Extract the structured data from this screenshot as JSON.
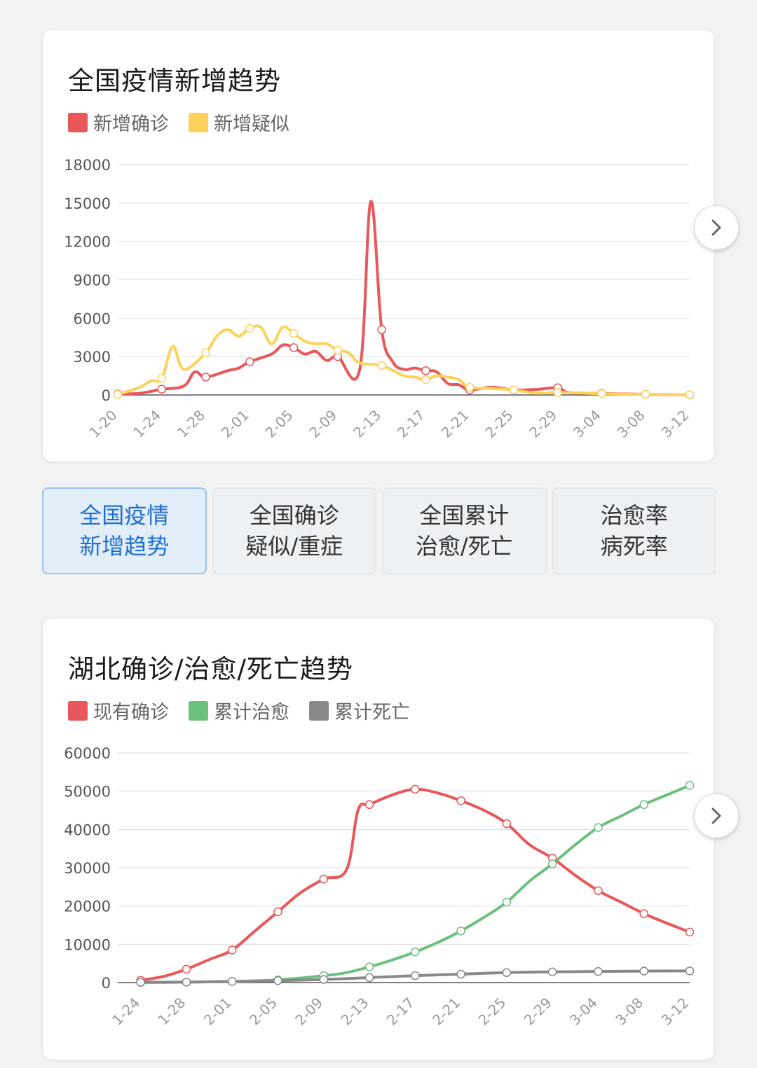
{
  "chart1": {
    "title": "全国疫情新增趋势",
    "legend": [
      {
        "name": "新增确诊",
        "color": "#e8575a"
      },
      {
        "name": "新增疑似",
        "color": "#fdd25a"
      }
    ],
    "next_icon": "chevron-right-icon"
  },
  "tabs": [
    {
      "line1": "全国疫情",
      "line2": "新增趋势",
      "active": true
    },
    {
      "line1": "全国确诊",
      "line2": "疑似/重症",
      "active": false
    },
    {
      "line1": "全国累计",
      "line2": "治愈/死亡",
      "active": false
    },
    {
      "line1": "治愈率",
      "line2": "病死率",
      "active": false
    }
  ],
  "chart2": {
    "title": "湖北确诊/治愈/死亡趋势",
    "legend": [
      {
        "name": "现有确诊",
        "color": "#e8575a"
      },
      {
        "name": "累计治愈",
        "color": "#6cc07d"
      },
      {
        "name": "累计死亡",
        "color": "#888888"
      }
    ],
    "next_icon": "chevron-right-icon"
  },
  "chart_data": [
    {
      "type": "line",
      "title": "全国疫情新增趋势",
      "ylim": [
        0,
        18000
      ],
      "y_ticks": [
        0,
        3000,
        6000,
        9000,
        12000,
        15000,
        18000
      ],
      "x_ticks": [
        "1-20",
        "1-24",
        "1-28",
        "2-01",
        "2-05",
        "2-09",
        "2-13",
        "2-17",
        "2-21",
        "2-25",
        "2-29",
        "3-04",
        "3-08",
        "3-12"
      ],
      "grid": true,
      "legend_position": "top-left",
      "series": [
        {
          "name": "新增确诊",
          "color": "#e8575a",
          "points": [
            [
              "1-20",
              80
            ],
            [
              "1-22",
              130
            ],
            [
              "1-24",
              450
            ],
            [
              "1-26",
              700
            ],
            [
              "1-27",
              1800
            ],
            [
              "1-28",
              1400
            ],
            [
              "1-30",
              1900
            ],
            [
              "1-31",
              2100
            ],
            [
              "2-01",
              2600
            ],
            [
              "2-03",
              3200
            ],
            [
              "2-04",
              3900
            ],
            [
              "2-05",
              3700
            ],
            [
              "2-06",
              3200
            ],
            [
              "2-07",
              3400
            ],
            [
              "2-08",
              2700
            ],
            [
              "2-09",
              3000
            ],
            [
              "2-11",
              2000
            ],
            [
              "2-12",
              15100
            ],
            [
              "2-13",
              5100
            ],
            [
              "2-14",
              2600
            ],
            [
              "2-15",
              2000
            ],
            [
              "2-16",
              2100
            ],
            [
              "2-17",
              1900
            ],
            [
              "2-18",
              1800
            ],
            [
              "2-19",
              900
            ],
            [
              "2-20",
              800
            ],
            [
              "2-21",
              400
            ],
            [
              "2-23",
              600
            ],
            [
              "2-25",
              400
            ],
            [
              "2-27",
              430
            ],
            [
              "2-29",
              570
            ],
            [
              "3-01",
              200
            ],
            [
              "3-04",
              120
            ],
            [
              "3-08",
              50
            ],
            [
              "3-12",
              15
            ]
          ]
        },
        {
          "name": "新增疑似",
          "color": "#fdd25a",
          "points": [
            [
              "1-20",
              50
            ],
            [
              "1-22",
              600
            ],
            [
              "1-23",
              1100
            ],
            [
              "1-24",
              1300
            ],
            [
              "1-25",
              3800
            ],
            [
              "1-26",
              2000
            ],
            [
              "1-28",
              3300
            ],
            [
              "1-29",
              4600
            ],
            [
              "1-30",
              5100
            ],
            [
              "1-31",
              4600
            ],
            [
              "2-01",
              5200
            ],
            [
              "2-02",
              5300
            ],
            [
              "2-03",
              4000
            ],
            [
              "2-04",
              5300
            ],
            [
              "2-05",
              4800
            ],
            [
              "2-06",
              4200
            ],
            [
              "2-07",
              4000
            ],
            [
              "2-08",
              4000
            ],
            [
              "2-09",
              3500
            ],
            [
              "2-10",
              3300
            ],
            [
              "2-11",
              2500
            ],
            [
              "2-13",
              2300
            ],
            [
              "2-15",
              1500
            ],
            [
              "2-16",
              1400
            ],
            [
              "2-17",
              1200
            ],
            [
              "2-18",
              1500
            ],
            [
              "2-19",
              1400
            ],
            [
              "2-20",
              1200
            ],
            [
              "2-21",
              600
            ],
            [
              "2-23",
              500
            ],
            [
              "2-25",
              400
            ],
            [
              "2-27",
              140
            ],
            [
              "2-29",
              200
            ],
            [
              "3-04",
              100
            ],
            [
              "3-08",
              50
            ],
            [
              "3-12",
              20
            ]
          ]
        }
      ]
    },
    {
      "type": "line",
      "title": "湖北确诊/治愈/死亡趋势",
      "ylim": [
        0,
        60000
      ],
      "y_ticks": [
        0,
        10000,
        20000,
        30000,
        40000,
        50000,
        60000
      ],
      "x_ticks": [
        "1-24",
        "1-28",
        "2-01",
        "2-05",
        "2-09",
        "2-13",
        "2-17",
        "2-21",
        "2-25",
        "2-29",
        "3-04",
        "3-08",
        "3-12"
      ],
      "grid": true,
      "legend_position": "top-left",
      "series": [
        {
          "name": "现有确诊",
          "color": "#e8575a",
          "points": [
            [
              "1-24",
              600
            ],
            [
              "1-26",
              1600
            ],
            [
              "1-28",
              3500
            ],
            [
              "1-30",
              6000
            ],
            [
              "2-01",
              8500
            ],
            [
              "2-03",
              13500
            ],
            [
              "2-05",
              18500
            ],
            [
              "2-07",
              23500
            ],
            [
              "2-09",
              27000
            ],
            [
              "2-11",
              29500
            ],
            [
              "2-12",
              45000
            ],
            [
              "2-13",
              46500
            ],
            [
              "2-15",
              49000
            ],
            [
              "2-17",
              50500
            ],
            [
              "2-19",
              49500
            ],
            [
              "2-21",
              47500
            ],
            [
              "2-23",
              45000
            ],
            [
              "2-25",
              41500
            ],
            [
              "2-27",
              36000
            ],
            [
              "2-29",
              32500
            ],
            [
              "3-02",
              28000
            ],
            [
              "3-04",
              24000
            ],
            [
              "3-06",
              21000
            ],
            [
              "3-08",
              18000
            ],
            [
              "3-10",
              15500
            ],
            [
              "3-12",
              13200
            ]
          ]
        },
        {
          "name": "累计治愈",
          "color": "#6cc07d",
          "points": [
            [
              "1-24",
              30
            ],
            [
              "1-28",
              100
            ],
            [
              "2-01",
              300
            ],
            [
              "2-05",
              700
            ],
            [
              "2-09",
              1800
            ],
            [
              "2-11",
              2600
            ],
            [
              "2-13",
              4100
            ],
            [
              "2-15",
              5900
            ],
            [
              "2-17",
              8000
            ],
            [
              "2-19",
              10500
            ],
            [
              "2-21",
              13500
            ],
            [
              "2-23",
              17000
            ],
            [
              "2-25",
              21000
            ],
            [
              "2-27",
              26500
            ],
            [
              "2-29",
              31000
            ],
            [
              "3-02",
              36000
            ],
            [
              "3-04",
              40500
            ],
            [
              "3-06",
              43500
            ],
            [
              "3-08",
              46500
            ],
            [
              "3-10",
              49000
            ],
            [
              "3-12",
              51500
            ]
          ]
        },
        {
          "name": "累计死亡",
          "color": "#888888",
          "points": [
            [
              "1-24",
              60
            ],
            [
              "1-28",
              120
            ],
            [
              "2-01",
              300
            ],
            [
              "2-05",
              500
            ],
            [
              "2-09",
              800
            ],
            [
              "2-13",
              1300
            ],
            [
              "2-17",
              1800
            ],
            [
              "2-21",
              2200
            ],
            [
              "2-25",
              2600
            ],
            [
              "2-29",
              2800
            ],
            [
              "3-04",
              2900
            ],
            [
              "3-08",
              3000
            ],
            [
              "3-12",
              3050
            ]
          ]
        }
      ]
    }
  ]
}
